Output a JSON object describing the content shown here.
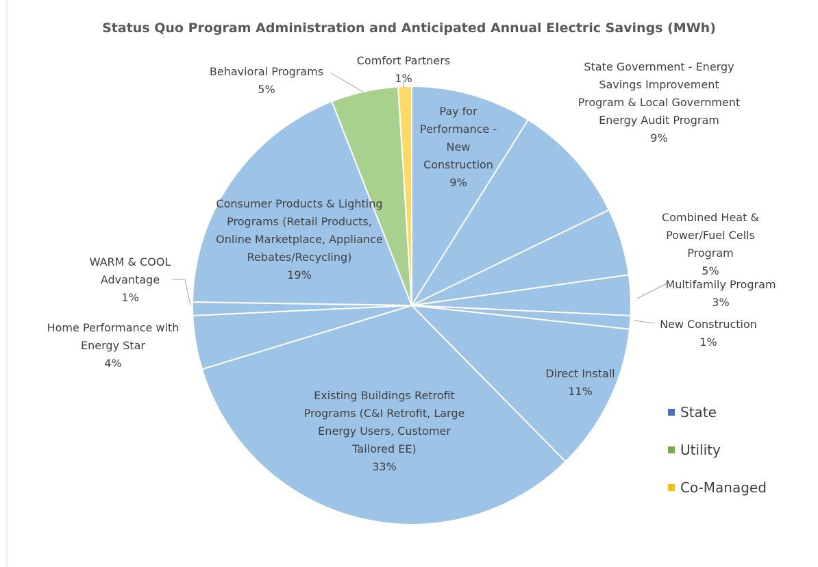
{
  "chart_data": {
    "type": "pie",
    "title": "Status Quo Program Administration and Anticipated Annual Electric Savings (MWh)",
    "categories": [
      "Pay for Performance - New Construction",
      "State Government - Energy Savings Improvement Program & Local Government Energy Audit Program",
      "Combined Heat & Power/Fuel Cells Program",
      "Multifamily Program",
      "New Construction",
      "Direct Install",
      "Existing Buildings Retrofit Programs (C&I Retrofit, Large Energy Users, Customer Tailored EE)",
      "Home Performance with Energy Star",
      "WARM & COOL Advantage",
      "Consumer Products & Lighting Programs (Retail Products, Online Marketplace, Appliance Rebates/Recycling)",
      "Behavioral Programs",
      "Comfort Partners"
    ],
    "values": [
      9,
      9,
      5,
      3,
      1,
      11,
      33,
      4,
      1,
      19,
      5,
      1
    ],
    "value_labels": [
      "9%",
      "9%",
      "5%",
      "3%",
      "1%",
      "11%",
      "33%",
      "4%",
      "1%",
      "19%",
      "5%",
      "1%"
    ],
    "colors": [
      "#9dc3e6",
      "#9dc3e6",
      "#9dc3e6",
      "#9dc3e6",
      "#9dc3e6",
      "#9dc3e6",
      "#9dc3e6",
      "#9dc3e6",
      "#9dc3e6",
      "#9dc3e6",
      "#a9d18e",
      "#ffd966"
    ],
    "legend": [
      {
        "name": "State",
        "color": "#4472c4"
      },
      {
        "name": "Utility",
        "color": "#70ad47"
      },
      {
        "name": "Co-Managed",
        "color": "#ffc000"
      }
    ]
  }
}
